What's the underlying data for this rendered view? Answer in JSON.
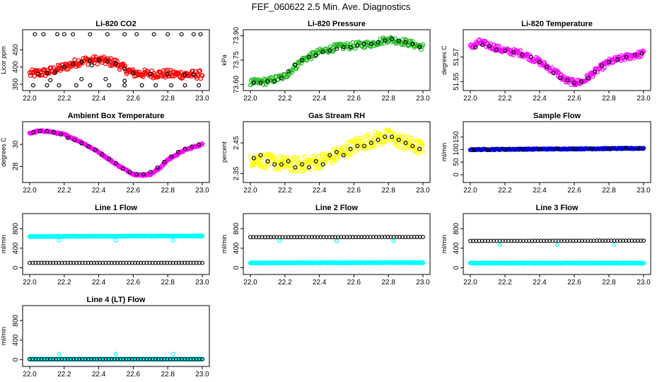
{
  "title": "FEF_060622  2.5 Min. Ave. Diagnostics",
  "chart_data": [
    {
      "type": "scatter",
      "title": "Li-820 CO2",
      "ylabel": "Licor ppm",
      "xlim": [
        22.0,
        23.0
      ],
      "ylim": [
        340,
        500
      ],
      "xticks": [
        "22.0",
        "22.2",
        "22.4",
        "22.6",
        "22.8",
        "23.0"
      ],
      "yticks": [
        350,
        400,
        450
      ],
      "dense": {
        "name": "raw",
        "color": "#ff0000",
        "x": [
          22.0,
          22.1,
          22.2,
          22.3,
          22.4,
          22.5,
          22.55,
          22.6,
          22.7,
          22.8,
          22.9,
          23.0
        ],
        "y": [
          380,
          385,
          400,
          418,
          420,
          412,
          395,
          382,
          380,
          380,
          378,
          378
        ],
        "noise": 12,
        "count": 220
      },
      "series": [
        {
          "name": "avg",
          "color": "#000000",
          "x": [
            22.05,
            22.1,
            22.15,
            22.2,
            22.25,
            22.3,
            22.35,
            22.4,
            22.45,
            22.5,
            22.55,
            22.6,
            22.7,
            22.8,
            22.9,
            22.95
          ],
          "y": [
            380,
            382,
            385,
            400,
            410,
            415,
            418,
            420,
            416,
            410,
            395,
            382,
            380,
            380,
            378,
            378
          ]
        },
        {
          "name": "avg-high",
          "color": "#000000",
          "x": [
            22.03,
            22.08,
            22.16,
            22.2,
            22.25,
            22.35,
            22.45,
            22.55,
            22.62,
            22.72,
            22.8,
            22.88,
            22.95,
            22.99
          ],
          "y": [
            495,
            495,
            495,
            495,
            495,
            495,
            495,
            495,
            495,
            495,
            495,
            495,
            495,
            495
          ]
        },
        {
          "name": "avg-low",
          "color": "#000000",
          "x": [
            22.02,
            22.1,
            22.17,
            22.27,
            22.35,
            22.46,
            22.55,
            22.65,
            22.73,
            22.82,
            22.9,
            22.98
          ],
          "y": [
            347,
            347,
            347,
            347,
            347,
            347,
            347,
            347,
            347,
            347,
            347,
            347
          ]
        },
        {
          "name": "avg-mid",
          "color": "#000000",
          "x": [
            22.12,
            22.2,
            22.3,
            22.36,
            22.44,
            22.55
          ],
          "y": [
            362,
            400,
            365,
            405,
            365,
            360
          ]
        }
      ]
    },
    {
      "type": "scatter",
      "title": "Li-820 Pressure",
      "ylabel": "kPa",
      "xlim": [
        22.0,
        23.0
      ],
      "ylim": [
        73.58,
        73.92
      ],
      "xticks": [
        "22.0",
        "22.2",
        "22.4",
        "22.6",
        "22.8",
        "23.0"
      ],
      "yticks": [
        "73.60",
        "73.75",
        "73.90"
      ],
      "dense": {
        "name": "raw",
        "color": "#22bb22",
        "x": [
          22.0,
          22.1,
          22.2,
          22.3,
          22.4,
          22.5,
          22.6,
          22.7,
          22.8,
          22.9,
          23.0
        ],
        "y": [
          73.61,
          73.62,
          73.65,
          73.75,
          73.8,
          73.83,
          73.84,
          73.85,
          73.88,
          73.86,
          73.83
        ],
        "noise": 0.02,
        "count": 200
      },
      "series": [
        {
          "name": "avg",
          "color": "#000000",
          "x": [
            22.02,
            22.06,
            22.1,
            22.14,
            22.18,
            22.22,
            22.26,
            22.3,
            22.34,
            22.38,
            22.42,
            22.46,
            22.5,
            22.54,
            22.58,
            22.62,
            22.66,
            22.7,
            22.74,
            22.78,
            22.82,
            22.86,
            22.9,
            22.94,
            22.98
          ],
          "y": [
            73.61,
            73.61,
            73.62,
            73.62,
            73.64,
            73.68,
            73.72,
            73.75,
            73.77,
            73.78,
            73.8,
            73.81,
            73.82,
            73.83,
            73.83,
            73.84,
            73.85,
            73.85,
            73.86,
            73.87,
            73.88,
            73.87,
            73.86,
            73.85,
            73.83
          ]
        }
      ]
    },
    {
      "type": "scatter",
      "title": "Li-820 Temperature",
      "ylabel": "degrees C",
      "xlim": [
        22.0,
        23.0
      ],
      "ylim": [
        51.545,
        51.59
      ],
      "xticks": [
        "22.0",
        "22.2",
        "22.4",
        "22.6",
        "22.8",
        "23.0"
      ],
      "yticks": [
        "51.55",
        "51.57"
      ],
      "dense": {
        "name": "raw",
        "color": "#ff00ff",
        "x": [
          22.0,
          22.05,
          22.1,
          22.2,
          22.3,
          22.4,
          22.5,
          22.55,
          22.6,
          22.65,
          22.7,
          22.8,
          22.9,
          23.0
        ],
        "y": [
          51.578,
          51.582,
          51.58,
          51.575,
          51.573,
          51.566,
          51.557,
          51.551,
          51.549,
          51.55,
          51.556,
          51.566,
          51.57,
          51.573
        ],
        "noise": 0.0025,
        "count": 230
      },
      "series": [
        {
          "name": "avg",
          "color": "#000000",
          "x": [
            22.03,
            22.07,
            22.11,
            22.15,
            22.2,
            22.25,
            22.3,
            22.35,
            22.4,
            22.44,
            22.48,
            22.52,
            22.56,
            22.6,
            22.64,
            22.68,
            22.72,
            22.76,
            22.8,
            22.85,
            22.9,
            22.95,
            22.99
          ],
          "y": [
            51.578,
            51.58,
            51.579,
            51.576,
            51.575,
            51.574,
            51.572,
            51.57,
            51.566,
            51.562,
            51.557,
            51.553,
            51.551,
            51.549,
            51.55,
            51.553,
            51.558,
            51.563,
            51.566,
            51.568,
            51.57,
            51.572,
            51.573
          ]
        }
      ]
    },
    {
      "type": "scatter",
      "title": "Ambient Box Temperature",
      "ylabel": "degrees C",
      "xlim": [
        22.0,
        23.0
      ],
      "ylim": [
        26.8,
        31.8
      ],
      "xticks": [
        "22.0",
        "22.2",
        "22.4",
        "22.6",
        "22.8",
        "23.0"
      ],
      "yticks": [
        28,
        30
      ],
      "dense": {
        "name": "raw",
        "color": "#ff00ff",
        "x": [
          22.0,
          22.05,
          22.1,
          22.2,
          22.3,
          22.4,
          22.5,
          22.6,
          22.65,
          22.7,
          22.75,
          22.8,
          22.9,
          23.0
        ],
        "y": [
          31.0,
          31.2,
          31.2,
          30.9,
          30.2,
          29.3,
          28.2,
          27.3,
          27.2,
          27.3,
          27.8,
          28.6,
          29.5,
          30.0
        ],
        "noise": 0.06,
        "count": 220
      },
      "series": [
        {
          "name": "avg",
          "color": "#000000",
          "x": [
            22.02,
            22.06,
            22.1,
            22.14,
            22.18,
            22.22,
            22.26,
            22.3,
            22.34,
            22.38,
            22.42,
            22.46,
            22.5,
            22.54,
            22.58,
            22.62,
            22.66,
            22.7,
            22.74,
            22.78,
            22.82,
            22.86,
            22.9,
            22.94,
            22.98
          ],
          "y": [
            31.1,
            31.2,
            31.2,
            31.1,
            30.9,
            30.6,
            30.4,
            30.1,
            29.8,
            29.5,
            29.1,
            28.7,
            28.3,
            27.8,
            27.5,
            27.3,
            27.3,
            27.5,
            27.9,
            28.4,
            28.9,
            29.3,
            29.6,
            29.8,
            30.0
          ]
        }
      ]
    },
    {
      "type": "scatter",
      "title": "Gas Stream RH",
      "ylabel": "percent",
      "xlim": [
        22.0,
        23.0
      ],
      "ylim": [
        2.33,
        2.51
      ],
      "xticks": [
        "22.0",
        "22.2",
        "22.4",
        "22.6",
        "22.8",
        "23.0"
      ],
      "yticks": [
        "2.35",
        "2.45"
      ],
      "dense": {
        "name": "raw",
        "color": "#ffff00",
        "x": [
          22.0,
          22.1,
          22.2,
          22.3,
          22.4,
          22.5,
          22.6,
          22.7,
          22.8,
          22.9,
          23.0
        ],
        "y": [
          2.4,
          2.39,
          2.38,
          2.38,
          2.39,
          2.41,
          2.44,
          2.46,
          2.47,
          2.45,
          2.43
        ],
        "noise": 0.025,
        "count": 260
      },
      "series": [
        {
          "name": "avg",
          "color": "#000000",
          "x": [
            22.02,
            22.06,
            22.1,
            22.14,
            22.18,
            22.22,
            22.26,
            22.3,
            22.34,
            22.38,
            22.42,
            22.46,
            22.5,
            22.54,
            22.58,
            22.62,
            22.66,
            22.7,
            22.74,
            22.78,
            22.82,
            22.86,
            22.9,
            22.94,
            22.98
          ],
          "y": [
            2.4,
            2.41,
            2.39,
            2.38,
            2.38,
            2.39,
            2.37,
            2.38,
            2.37,
            2.39,
            2.38,
            2.41,
            2.42,
            2.41,
            2.43,
            2.44,
            2.44,
            2.45,
            2.46,
            2.47,
            2.47,
            2.46,
            2.45,
            2.44,
            2.43
          ]
        }
      ]
    },
    {
      "type": "scatter",
      "title": "Sample Flow",
      "ylabel": "ml/min",
      "xlim": [
        22.0,
        23.0
      ],
      "ylim": [
        -20,
        200
      ],
      "xticks": [
        "22.0",
        "22.2",
        "22.4",
        "22.6",
        "22.8",
        "23.0"
      ],
      "yticks": [
        0,
        50,
        100,
        150
      ],
      "dense": {
        "name": "raw",
        "color": "#0000cc",
        "x": [
          22.0,
          23.0
        ],
        "y": [
          100,
          105
        ],
        "noise": 1.5,
        "count": 200
      },
      "series": [
        {
          "name": "avg",
          "color": "#000000",
          "x": [
            22.02,
            22.1,
            22.2,
            22.3,
            22.4,
            22.5,
            22.6,
            22.7,
            22.8,
            22.9,
            22.98
          ],
          "y": [
            100,
            100,
            101,
            102,
            102,
            103,
            103,
            104,
            104,
            104,
            105
          ]
        }
      ]
    },
    {
      "type": "scatter",
      "title": "Line 1 Flow",
      "ylabel": "ml/min",
      "xlim": [
        22.0,
        23.0
      ],
      "ylim": [
        -80,
        1050
      ],
      "xticks": [
        "22.0",
        "22.2",
        "22.4",
        "22.6",
        "22.8",
        "23.0"
      ],
      "yticks": [
        0,
        400,
        800
      ],
      "dense": {
        "name": "raw",
        "color": "#00ffff",
        "x": [
          22.0,
          23.0
        ],
        "y": [
          640,
          650
        ],
        "noise": 4,
        "count": 200
      },
      "series": [
        {
          "name": "avg",
          "color": "#000000",
          "x": [
            22.0,
            23.0
          ],
          "y": [
            100,
            100
          ],
          "repeat": 60
        },
        {
          "name": "outliers",
          "color": "#00ffff",
          "x": [
            22.17,
            22.5,
            22.83
          ],
          "y": [
            560,
            560,
            560
          ]
        }
      ]
    },
    {
      "type": "scatter",
      "title": "Line 2 Flow",
      "ylabel": "ml/min",
      "xlim": [
        22.0,
        23.0
      ],
      "ylim": [
        -80,
        1050
      ],
      "xticks": [
        "22.0",
        "22.2",
        "22.4",
        "22.6",
        "22.8",
        "23.0"
      ],
      "yticks": [
        0,
        400,
        800
      ],
      "dense": {
        "name": "raw",
        "color": "#00ffff",
        "x": [
          22.0,
          23.0
        ],
        "y": [
          100,
          105
        ],
        "noise": 4,
        "count": 200
      },
      "series": [
        {
          "name": "avg",
          "color": "#000000",
          "x": [
            22.0,
            23.0
          ],
          "y": [
            625,
            630
          ],
          "repeat": 60
        },
        {
          "name": "outliers",
          "color": "#00ffff",
          "x": [
            22.17,
            22.5,
            22.83
          ],
          "y": [
            550,
            550,
            550
          ]
        }
      ]
    },
    {
      "type": "scatter",
      "title": "Line 3 Flow",
      "ylabel": "ml/min",
      "xlim": [
        22.0,
        23.0
      ],
      "ylim": [
        -80,
        1050
      ],
      "xticks": [
        "22.0",
        "22.2",
        "22.4",
        "22.6",
        "22.8",
        "23.0"
      ],
      "yticks": [
        0,
        400,
        800
      ],
      "dense": {
        "name": "raw",
        "color": "#00ffff",
        "x": [
          22.0,
          23.0
        ],
        "y": [
          95,
          95
        ],
        "noise": 4,
        "count": 200
      },
      "series": [
        {
          "name": "avg",
          "color": "#000000",
          "x": [
            22.0,
            23.0
          ],
          "y": [
            550,
            555
          ],
          "repeat": 60
        },
        {
          "name": "outliers",
          "color": "#00ffff",
          "x": [
            22.17,
            22.5,
            22.83
          ],
          "y": [
            470,
            470,
            470
          ]
        }
      ]
    },
    {
      "type": "scatter",
      "title": "Line 4 (LT) Flow",
      "ylabel": "ml/min",
      "xlim": [
        22.0,
        23.0
      ],
      "ylim": [
        -80,
        1050
      ],
      "xticks": [
        "22.0",
        "22.2",
        "22.4",
        "22.6",
        "22.8",
        "23.0"
      ],
      "yticks": [
        0,
        400,
        800
      ],
      "dense": {
        "name": "raw",
        "color": "#00ffff",
        "x": [
          22.0,
          23.0
        ],
        "y": [
          10,
          10
        ],
        "noise": 3,
        "count": 200
      },
      "series": [
        {
          "name": "avg",
          "color": "#000000",
          "x": [
            22.0,
            23.0
          ],
          "y": [
            10,
            10
          ],
          "repeat": 60
        },
        {
          "name": "outliers",
          "color": "#00ffff",
          "x": [
            22.17,
            22.5,
            22.83
          ],
          "y": [
            120,
            120,
            120
          ]
        }
      ]
    }
  ]
}
